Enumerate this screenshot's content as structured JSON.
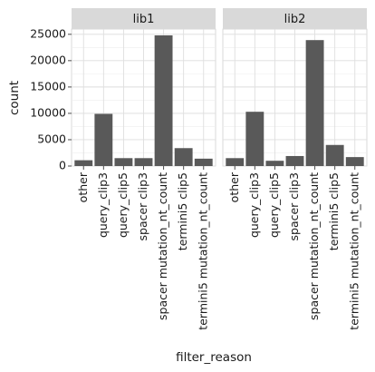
{
  "chart_data": {
    "type": "bar",
    "xlabel": "filter_reason",
    "ylabel": "count",
    "ylim": [
      0,
      26000
    ],
    "yticks": [
      0,
      5000,
      10000,
      15000,
      20000,
      25000
    ],
    "grid": true,
    "facet_by": "library",
    "categories": [
      "other",
      "query_clip3",
      "query_clip5",
      "spacer clip3",
      "spacer mutation_nt_count",
      "termini5 clip5",
      "termini5 mutation_nt_count"
    ],
    "facets": [
      {
        "name": "lib1",
        "values": [
          1100,
          9900,
          1500,
          1500,
          24800,
          3400,
          1400
        ]
      },
      {
        "name": "lib2",
        "values": [
          1500,
          10300,
          1000,
          1900,
          23900,
          4000,
          1700
        ]
      }
    ],
    "bar_color": "#595959",
    "strip_color": "#d9d9d9",
    "grid_color": "#dedede"
  }
}
